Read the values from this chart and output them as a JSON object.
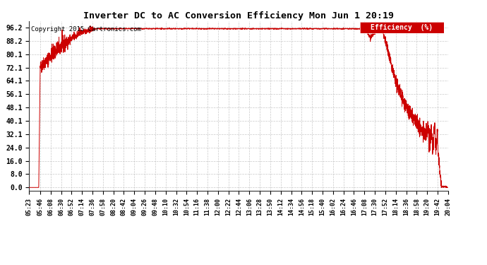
{
  "title": "Inverter DC to AC Conversion Efficiency Mon Jun 1 20:19",
  "copyright": "Copyright 2015 Cartronics.com",
  "legend_label": "Efficiency  (%)",
  "legend_bg": "#cc0000",
  "legend_fg": "#ffffff",
  "line_color": "#cc0000",
  "bg_color": "#ffffff",
  "grid_color": "#bbbbbb",
  "yticks": [
    0.0,
    8.0,
    16.0,
    24.0,
    32.1,
    40.1,
    48.1,
    56.1,
    64.1,
    72.1,
    80.1,
    88.2,
    96.2
  ],
  "xtick_labels": [
    "05:23",
    "05:46",
    "06:08",
    "06:30",
    "06:52",
    "07:14",
    "07:36",
    "07:58",
    "08:20",
    "08:42",
    "09:04",
    "09:26",
    "09:48",
    "10:10",
    "10:32",
    "10:54",
    "11:16",
    "11:38",
    "12:00",
    "12:22",
    "12:44",
    "13:06",
    "13:28",
    "13:50",
    "14:12",
    "14:34",
    "14:56",
    "15:18",
    "15:40",
    "16:02",
    "16:24",
    "16:46",
    "17:08",
    "17:30",
    "17:52",
    "18:14",
    "18:36",
    "18:58",
    "19:20",
    "19:42",
    "20:04"
  ]
}
